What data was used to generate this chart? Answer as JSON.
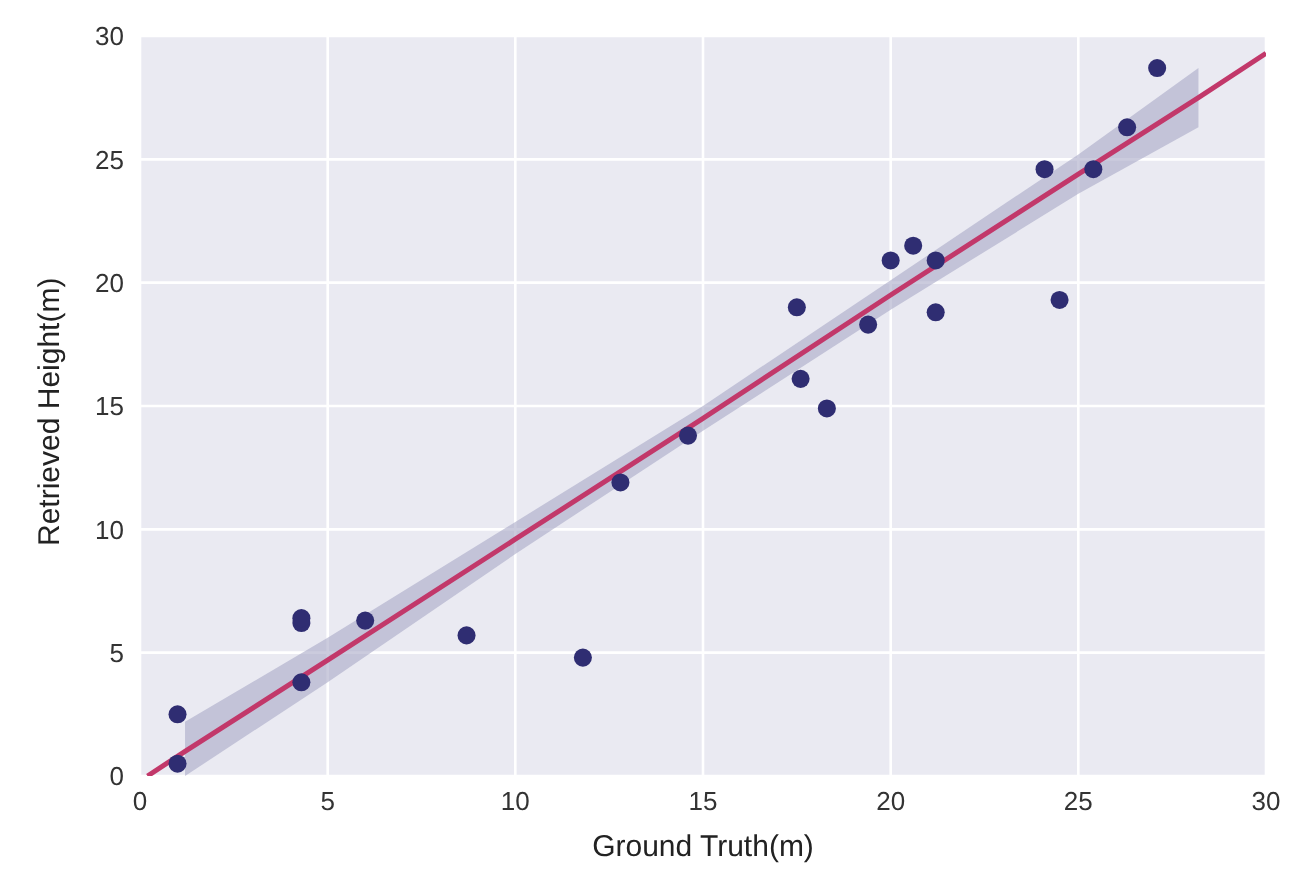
{
  "chart_data": {
    "type": "scatter",
    "xlabel": "Ground Truth(m)",
    "ylabel": "Retrieved Height(m)",
    "xlim": [
      0,
      30
    ],
    "ylim": [
      0,
      30
    ],
    "xticks": [
      0,
      5,
      10,
      15,
      20,
      25,
      30
    ],
    "yticks": [
      0,
      5,
      10,
      15,
      20,
      25,
      30
    ],
    "grid": true,
    "marker": "circle",
    "series": [
      {
        "color": "#2f2d72",
        "x": [
          1.0,
          1.0,
          4.3,
          4.3,
          4.3,
          6.0,
          8.7,
          11.8,
          12.8,
          14.6,
          17.5,
          17.6,
          18.3,
          19.4,
          20.0,
          20.6,
          21.2,
          21.2,
          24.1,
          24.5,
          25.4,
          26.3,
          27.1
        ],
        "values": [
          2.5,
          0.5,
          6.2,
          6.4,
          3.8,
          6.3,
          5.7,
          4.8,
          11.9,
          13.8,
          19.0,
          16.1,
          14.9,
          18.3,
          20.9,
          21.5,
          20.9,
          18.8,
          24.6,
          19.3,
          24.6,
          26.3,
          28.7
        ]
      },
      {
        "type": "line",
        "color": "#c2386a",
        "line_style": "solid",
        "marker": "none",
        "x": [
          0.2,
          1.2,
          5,
          10,
          15,
          20,
          25,
          28.2,
          30
        ],
        "values": [
          0,
          1.0,
          4.7,
          9.6,
          14.5,
          19.5,
          24.4,
          27.5,
          29.3
        ],
        "lower": [
          null,
          0,
          3.8,
          9.0,
          14.0,
          18.9,
          23.6,
          26.3,
          null
        ],
        "upper": [
          null,
          2.2,
          5.6,
          10.3,
          15.0,
          20.1,
          25.2,
          28.7,
          null
        ]
      }
    ]
  }
}
